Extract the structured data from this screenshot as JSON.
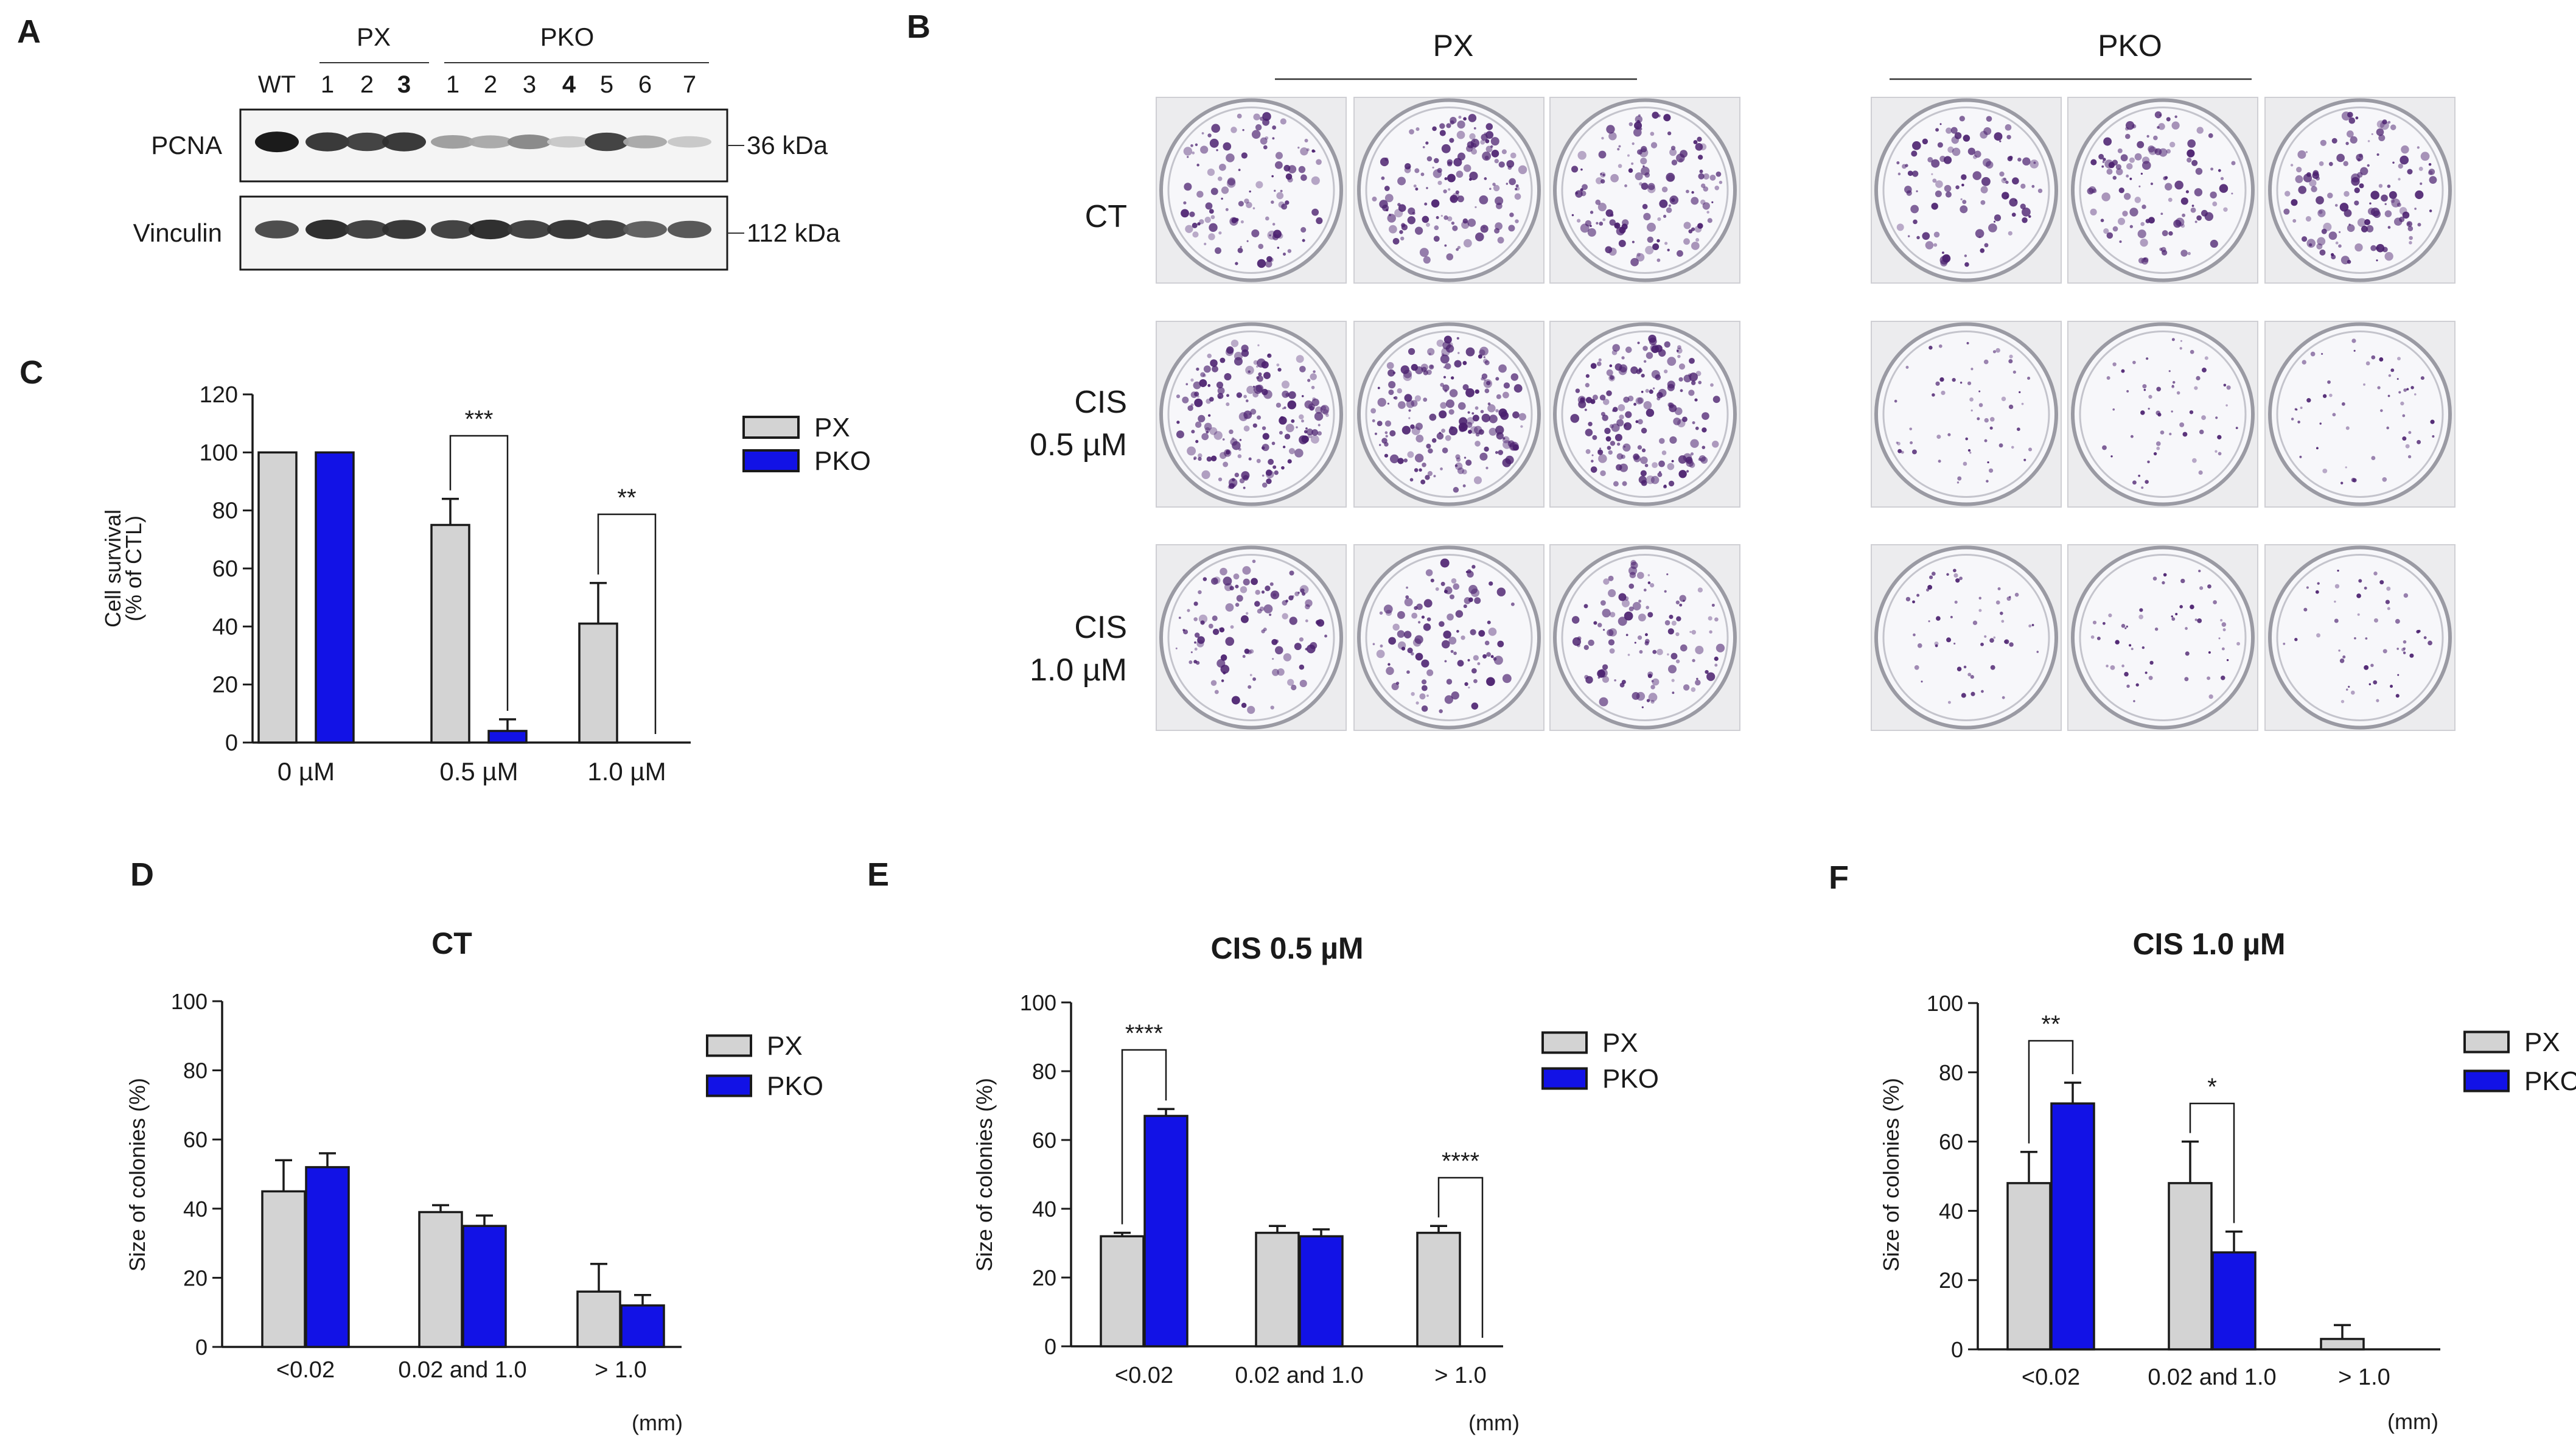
{
  "panels": {
    "A": {
      "letter": "A",
      "group_px": "PX",
      "group_pko": "PKO",
      "lanes": [
        "WT",
        "1",
        "2",
        "3",
        "1",
        "2",
        "3",
        "4",
        "5",
        "6",
        "7"
      ],
      "lane_colors": [
        "#1a1a1a",
        "#1a1a1a",
        "#1a1a1a",
        "#1f6fb5",
        "#1a1a1a",
        "#1a1a1a",
        "#1a1a1a",
        "#1a1aa8",
        "#1a1a1a",
        "#1a1a1a",
        "#1a1a1a"
      ],
      "rows": [
        {
          "label": "PCNA",
          "marker": "36 kDa",
          "intensity": [
            1.0,
            0.85,
            0.8,
            0.85,
            0.35,
            0.3,
            0.45,
            0.15,
            0.8,
            0.3,
            0.15
          ]
        },
        {
          "label": "Vinculin",
          "marker": "112 kDa",
          "intensity": [
            0.75,
            0.9,
            0.8,
            0.85,
            0.8,
            0.9,
            0.8,
            0.85,
            0.8,
            0.65,
            0.7
          ]
        }
      ]
    },
    "B": {
      "letter": "B",
      "group_px": "PX",
      "group_pko": "PKO",
      "row_labels": [
        [
          "CT"
        ],
        [
          "CIS",
          "0.5 µM"
        ],
        [
          "CIS",
          "1.0 µM"
        ]
      ],
      "colony_density": [
        [
          0.55,
          0.75,
          0.7,
          0.45,
          0.55,
          0.65
        ],
        [
          1.0,
          1.0,
          0.95,
          0.12,
          0.12,
          0.1
        ],
        [
          0.5,
          0.45,
          0.5,
          0.1,
          0.1,
          0.08
        ]
      ],
      "colony_color": "#4a1f6e"
    },
    "C": {
      "letter": "C"
    },
    "D": {
      "letter": "D"
    },
    "E": {
      "letter": "E"
    },
    "F": {
      "letter": "F"
    }
  },
  "colors": {
    "PX": "#d3d3d3",
    "PKO": "#1212e6",
    "axis": "#1a1a1a"
  },
  "chart_data": [
    {
      "id": "C",
      "type": "bar",
      "title": "",
      "categories": [
        "0 µM",
        "0.5 µM",
        "1.0 µM"
      ],
      "ylabel": [
        "Cell survival",
        "(% of CTL)"
      ],
      "xlabel": "",
      "ylim": [
        0,
        120
      ],
      "yticks": [
        0,
        20,
        40,
        60,
        80,
        100,
        120
      ],
      "legend_position": "top-right",
      "series": [
        {
          "name": "PX",
          "values": [
            100,
            75,
            41
          ],
          "errors": [
            0,
            9,
            14
          ]
        },
        {
          "name": "PKO",
          "values": [
            100,
            4,
            0
          ],
          "errors": [
            0,
            4,
            0
          ]
        }
      ],
      "annotations": [
        {
          "category": 1,
          "text": "***"
        },
        {
          "category": 2,
          "text": "**"
        }
      ]
    },
    {
      "id": "D",
      "type": "bar",
      "title": "CT",
      "categories": [
        "<0.02",
        "0.02 and 1.0",
        "> 1.0"
      ],
      "ylabel": "Size of colonies (%)",
      "xlabel": "(mm)",
      "ylim": [
        0,
        100
      ],
      "yticks": [
        0,
        20,
        40,
        60,
        80,
        100
      ],
      "legend_position": "top-right",
      "series": [
        {
          "name": "PX",
          "values": [
            45,
            39,
            16
          ],
          "errors": [
            9,
            2,
            8
          ]
        },
        {
          "name": "PKO",
          "values": [
            52,
            35,
            12
          ],
          "errors": [
            4,
            3,
            3
          ]
        }
      ],
      "annotations": []
    },
    {
      "id": "E",
      "type": "bar",
      "title": "CIS 0.5 µM",
      "categories": [
        "<0.02",
        "0.02 and 1.0",
        "> 1.0"
      ],
      "ylabel": "Size of colonies (%)",
      "xlabel": "(mm)",
      "ylim": [
        0,
        100
      ],
      "yticks": [
        0,
        20,
        40,
        60,
        80,
        100
      ],
      "legend_position": "top-right",
      "series": [
        {
          "name": "PX",
          "values": [
            32,
            33,
            33
          ],
          "errors": [
            1,
            2,
            2
          ]
        },
        {
          "name": "PKO",
          "values": [
            67,
            32,
            0
          ],
          "errors": [
            2,
            2,
            0
          ]
        }
      ],
      "annotations": [
        {
          "category": 0,
          "text": "****"
        },
        {
          "category": 2,
          "text": "****"
        }
      ]
    },
    {
      "id": "F",
      "type": "bar",
      "title": "CIS 1.0 µM",
      "categories": [
        "<0.02",
        "0.02 and 1.0",
        "> 1.0"
      ],
      "ylabel": "Size of colonies (%)",
      "xlabel": "(mm)",
      "ylim": [
        0,
        100
      ],
      "yticks": [
        0,
        20,
        40,
        60,
        80,
        100
      ],
      "legend_position": "top-right",
      "series": [
        {
          "name": "PX",
          "values": [
            48,
            48,
            3
          ],
          "errors": [
            9,
            12,
            4
          ]
        },
        {
          "name": "PKO",
          "values": [
            71,
            28,
            0
          ],
          "errors": [
            6,
            6,
            0
          ]
        }
      ],
      "annotations": [
        {
          "category": 0,
          "text": "**"
        },
        {
          "category": 1,
          "text": "*"
        }
      ]
    }
  ]
}
